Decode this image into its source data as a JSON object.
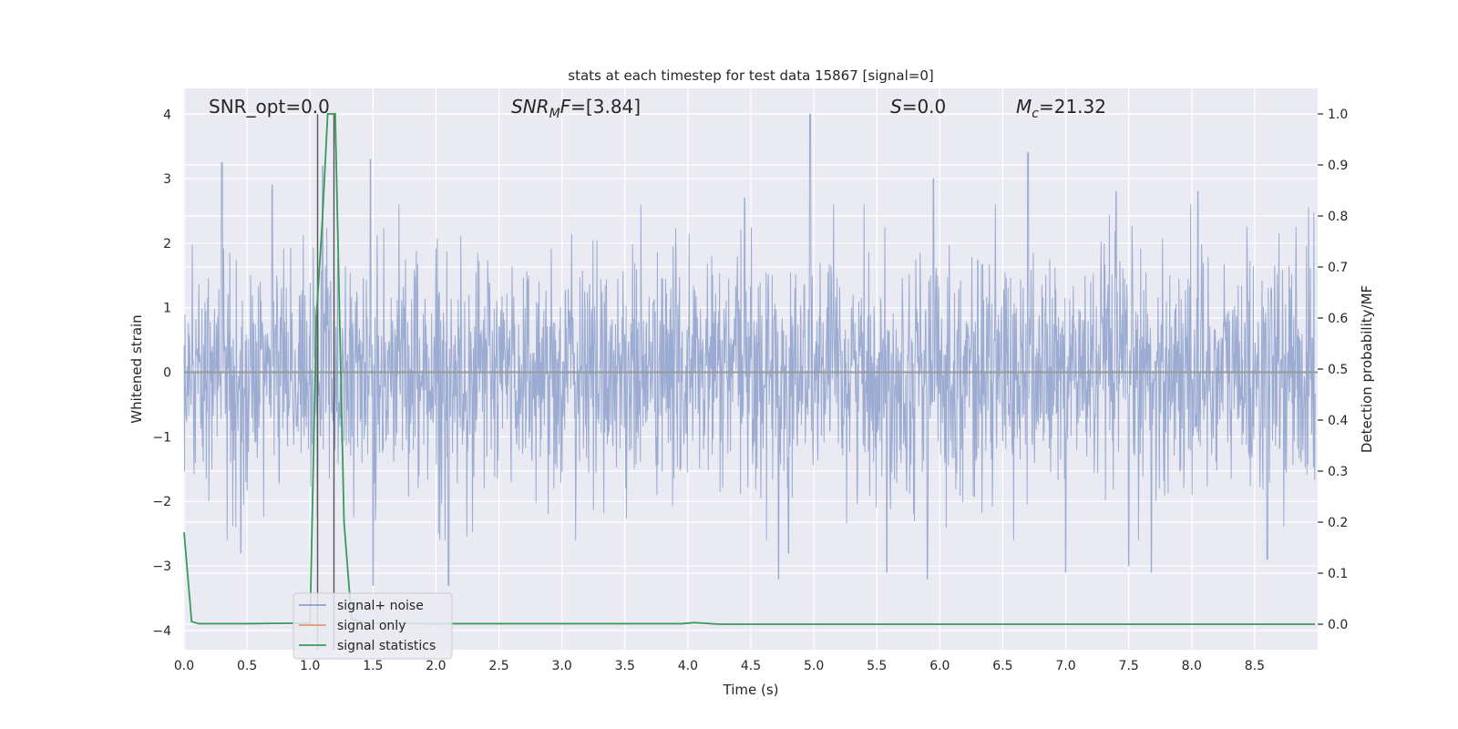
{
  "chart_data": {
    "type": "line",
    "title": "stats at each timestep for test data 15867 [signal=0]",
    "xlabel": "Time (s)",
    "ylabel_left": "Whitened strain",
    "ylabel_right": "Detection probability/MF",
    "xlim": [
      0.0,
      9.0
    ],
    "ylim_left": [
      -4.3,
      4.4
    ],
    "ylim_right": [
      -0.05,
      1.05
    ],
    "x_ticks": [
      0.0,
      0.5,
      1.0,
      1.5,
      2.0,
      2.5,
      3.0,
      3.5,
      4.0,
      4.5,
      5.0,
      5.5,
      6.0,
      6.5,
      7.0,
      7.5,
      8.0,
      8.5
    ],
    "x_tick_labels": [
      "0.0",
      "0.5",
      "1.0",
      "1.5",
      "2.0",
      "2.5",
      "3.0",
      "3.5",
      "4.0",
      "4.5",
      "5.0",
      "5.5",
      "6.0",
      "6.5",
      "7.0",
      "7.5",
      "8.0",
      "8.5"
    ],
    "y_ticks_left": [
      -4,
      -3,
      -2,
      -1,
      0,
      1,
      2,
      3,
      4
    ],
    "y_tick_labels_left": [
      "−4",
      "−3",
      "−2",
      "−1",
      "0",
      "1",
      "2",
      "3",
      "4"
    ],
    "y_ticks_right": [
      0.0,
      0.1,
      0.2,
      0.3,
      0.4,
      0.5,
      0.6,
      0.7,
      0.8,
      0.9,
      1.0
    ],
    "y_tick_labels_right": [
      "0.0",
      "0.1",
      "0.2",
      "0.3",
      "0.4",
      "0.5",
      "0.6",
      "0.7",
      "0.8",
      "0.9",
      "1.0"
    ],
    "grid": true,
    "annotations": [
      {
        "name": "snr-opt",
        "text": "SNR_opt=0.0"
      },
      {
        "name": "snr-mf",
        "text": "SNR",
        "sub": "M",
        "tail": "F=[3.84]",
        "italic": true
      },
      {
        "name": "s-stat",
        "text": "S",
        "tail": "=0.0",
        "italic": true
      },
      {
        "name": "chirp-mass",
        "text": "M",
        "sub": "c",
        "tail": "=21.32",
        "italic": true
      }
    ],
    "legend": {
      "placement": "lower-left",
      "entries": [
        {
          "label": "signal+ noise",
          "color": "#8da0cb"
        },
        {
          "label": "signal only",
          "color": "#e5967a"
        },
        {
          "label": "signal statistics",
          "color": "#3a9a5a"
        }
      ]
    },
    "vlines": [
      1.06,
      1.19
    ],
    "series": [
      {
        "name": "signal+ noise",
        "axis": "left",
        "color": "#8da0cb",
        "description": "whitened noise, approximately Gaussian, amplitude envelope ~±1.5 with spikes up to 4.0 (at t≈4.97) and down to −3.2",
        "peaks_high": [
          [
            0.3,
            3.25
          ],
          [
            0.7,
            2.9
          ],
          [
            1.1,
            3.2
          ],
          [
            1.48,
            3.3
          ],
          [
            4.45,
            2.7
          ],
          [
            4.97,
            4.0
          ],
          [
            5.95,
            3.0
          ],
          [
            6.7,
            3.4
          ],
          [
            7.4,
            2.8
          ],
          [
            8.05,
            2.8
          ]
        ],
        "peaks_low": [
          [
            0.45,
            -2.8
          ],
          [
            1.5,
            -3.3
          ],
          [
            2.1,
            -3.3
          ],
          [
            4.72,
            -3.2
          ],
          [
            4.8,
            -2.8
          ],
          [
            5.58,
            -3.1
          ],
          [
            5.9,
            -3.2
          ],
          [
            7.0,
            -3.1
          ],
          [
            7.5,
            -3.0
          ],
          [
            7.68,
            -3.1
          ],
          [
            8.6,
            -2.9
          ]
        ]
      },
      {
        "name": "signal only",
        "axis": "left",
        "color": "#e5967a",
        "x": [
          0.0,
          9.0
        ],
        "y": [
          0.0,
          0.0
        ]
      },
      {
        "name": "signal statistics",
        "axis": "right",
        "color": "#3a9a5a",
        "x": [
          0.0,
          0.06,
          0.12,
          0.5,
          0.9,
          1.0,
          1.05,
          1.1,
          1.14,
          1.2,
          1.27,
          1.33,
          1.45,
          2.0,
          3.0,
          3.95,
          4.05,
          4.25,
          5.0,
          6.0,
          7.0,
          8.0,
          8.98
        ],
        "y": [
          0.18,
          0.005,
          0.001,
          0.001,
          0.002,
          0.001,
          0.6,
          0.8,
          1.0,
          1.0,
          0.2,
          0.01,
          0.002,
          0.001,
          0.001,
          0.001,
          0.003,
          0.0,
          0.0,
          0.0,
          0.0,
          0.0,
          0.0
        ]
      }
    ]
  }
}
